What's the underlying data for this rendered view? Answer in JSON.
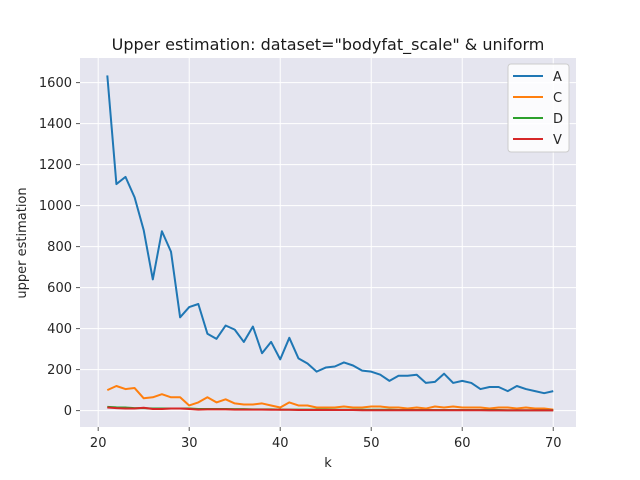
{
  "chart_data": {
    "type": "line",
    "title": "Upper estimation: dataset=\"bodyfat_scale\" & uniform",
    "xlabel": "k",
    "ylabel": "upper estimation",
    "xlim": [
      18,
      72.5
    ],
    "ylim": [
      -80,
      1720
    ],
    "xticks": [
      20,
      30,
      40,
      50,
      60,
      70
    ],
    "yticks": [
      0,
      200,
      400,
      600,
      800,
      1000,
      1200,
      1400,
      1600
    ],
    "grid": true,
    "legend_position": "top-right",
    "x": [
      21,
      22,
      23,
      24,
      25,
      26,
      27,
      28,
      29,
      30,
      31,
      32,
      33,
      34,
      35,
      36,
      37,
      38,
      39,
      40,
      41,
      42,
      43,
      44,
      45,
      46,
      47,
      48,
      49,
      50,
      51,
      52,
      53,
      54,
      55,
      56,
      57,
      58,
      59,
      60,
      61,
      62,
      63,
      64,
      65,
      66,
      67,
      68,
      69,
      70
    ],
    "series": [
      {
        "name": "A",
        "color": "#1f77b4",
        "values": [
          1635,
          1105,
          1140,
          1040,
          880,
          640,
          875,
          775,
          455,
          505,
          520,
          375,
          350,
          415,
          395,
          335,
          410,
          280,
          335,
          250,
          355,
          255,
          230,
          190,
          210,
          215,
          235,
          220,
          195,
          190,
          175,
          145,
          170,
          170,
          175,
          135,
          140,
          180,
          135,
          145,
          135,
          105,
          115,
          115,
          95,
          120,
          105,
          95,
          85,
          95
        ]
      },
      {
        "name": "C",
        "color": "#ff7f0e",
        "values": [
          100,
          120,
          105,
          110,
          60,
          65,
          80,
          65,
          65,
          25,
          40,
          65,
          40,
          55,
          35,
          30,
          30,
          35,
          25,
          15,
          40,
          25,
          25,
          15,
          15,
          15,
          20,
          15,
          15,
          20,
          20,
          15,
          15,
          10,
          15,
          10,
          20,
          15,
          20,
          15,
          15,
          15,
          10,
          15,
          15,
          10,
          15,
          10,
          10,
          5
        ]
      },
      {
        "name": "D",
        "color": "#2ca02c",
        "values": [
          18,
          16,
          15,
          12,
          12,
          10,
          10,
          10,
          10,
          10,
          8,
          8,
          8,
          8,
          7,
          7,
          6,
          6,
          6,
          5,
          5,
          5,
          5,
          5,
          5,
          4,
          4,
          4,
          4,
          4,
          4,
          4,
          3,
          3,
          3,
          3,
          3,
          3,
          3,
          3,
          3,
          3,
          3,
          3,
          2,
          2,
          2,
          2,
          2,
          2
        ]
      },
      {
        "name": "V",
        "color": "#d62728",
        "values": [
          15,
          12,
          10,
          10,
          14,
          8,
          8,
          10,
          10,
          8,
          5,
          6,
          6,
          6,
          5,
          5,
          5,
          5,
          4,
          4,
          4,
          3,
          3,
          3,
          3,
          3,
          3,
          3,
          2,
          2,
          2,
          2,
          2,
          2,
          2,
          2,
          2,
          2,
          2,
          2,
          2,
          2,
          1,
          1,
          1,
          1,
          1,
          1,
          1,
          1
        ]
      }
    ]
  }
}
